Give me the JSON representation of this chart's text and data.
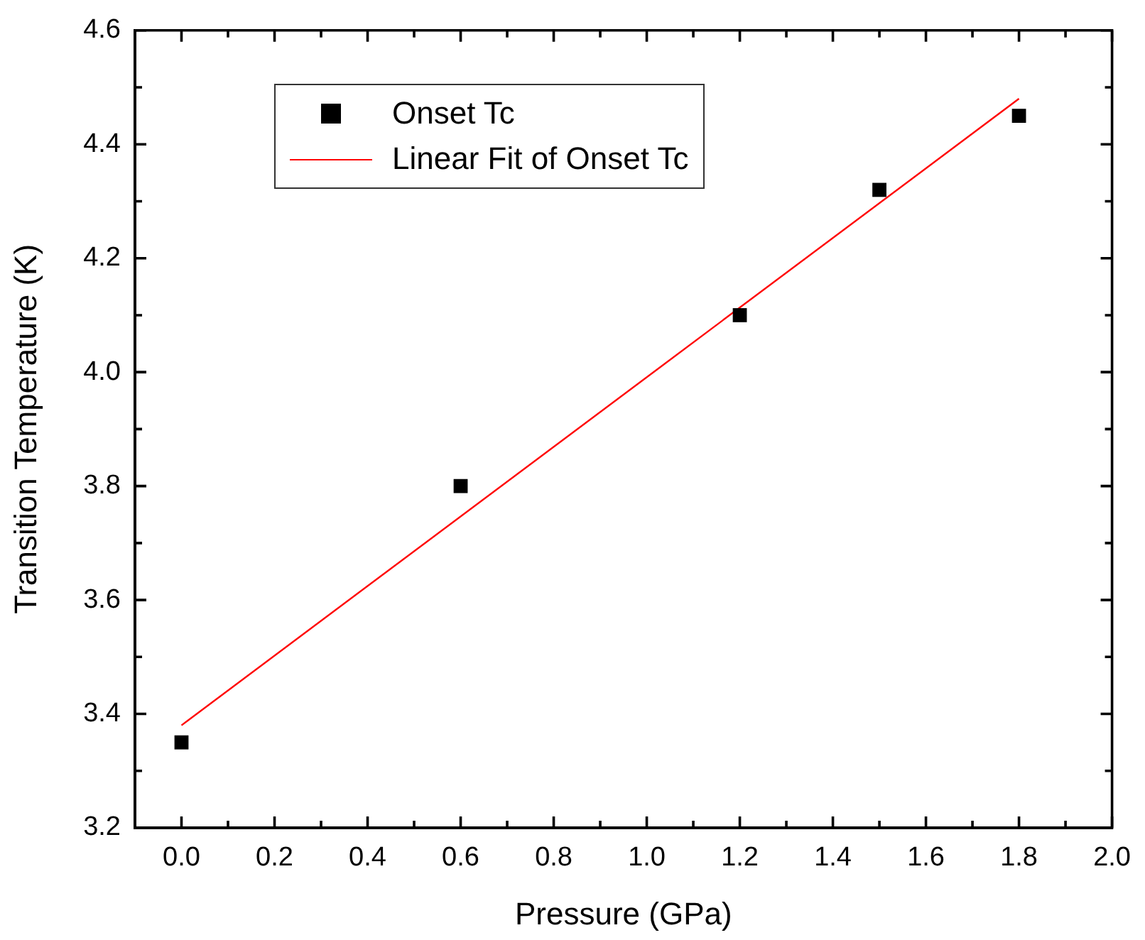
{
  "chart_data": {
    "type": "scatter",
    "xlabel": "Pressure (GPa)",
    "ylabel": "Transition Temperature (K)",
    "xlim": [
      -0.1,
      2.0
    ],
    "ylim": [
      3.2,
      4.6
    ],
    "xticks": [
      {
        "value": -0.1,
        "label": null
      },
      {
        "value": 0,
        "label": "0.0"
      },
      {
        "value": 0.1,
        "label": null
      },
      0.2,
      {
        "value": 0.3,
        "label": null
      },
      0.4,
      {
        "value": 0.5,
        "label": null
      },
      0.6,
      {
        "value": 0.7,
        "label": null
      },
      0.8,
      {
        "value": 0.9,
        "label": null
      },
      {
        "value": 1,
        "label": "1.0"
      },
      {
        "value": 1.1,
        "label": null
      },
      1.2,
      {
        "value": 1.3,
        "label": null
      },
      1.4,
      {
        "value": 1.5,
        "label": null
      },
      1.6,
      {
        "value": 1.7,
        "label": null
      },
      1.8,
      {
        "value": 1.9,
        "label": null
      },
      {
        "value": 2,
        "label": "2.0"
      }
    ],
    "yticks": [
      3.2,
      {
        "value": 3.3,
        "label": null
      },
      3.4,
      {
        "value": 3.5,
        "label": null
      },
      3.6,
      {
        "value": 3.7,
        "label": null
      },
      3.8,
      {
        "value": 3.9,
        "label": null
      },
      {
        "value": 4,
        "label": "4.0"
      },
      {
        "value": 4.1,
        "label": null
      },
      4.2,
      {
        "value": 4.3,
        "label": null
      },
      4.4,
      {
        "value": 4.5,
        "label": null
      },
      4.6
    ],
    "grid": false,
    "legend": "top left",
    "series": [
      {
        "name": "Onset Tc",
        "marker": "square",
        "color": "#000000",
        "x": [
          0.0,
          0.6,
          1.2,
          1.5,
          1.8
        ],
        "values": [
          3.35,
          3.8,
          4.1,
          4.32,
          4.45
        ]
      },
      {
        "name": "Linear Fit of Onset Tc",
        "type": "line",
        "marker": "none",
        "line_style": "solid",
        "color": "#ff0000",
        "x": [
          0.0,
          1.8
        ],
        "values": [
          3.38,
          4.48
        ]
      }
    ]
  }
}
